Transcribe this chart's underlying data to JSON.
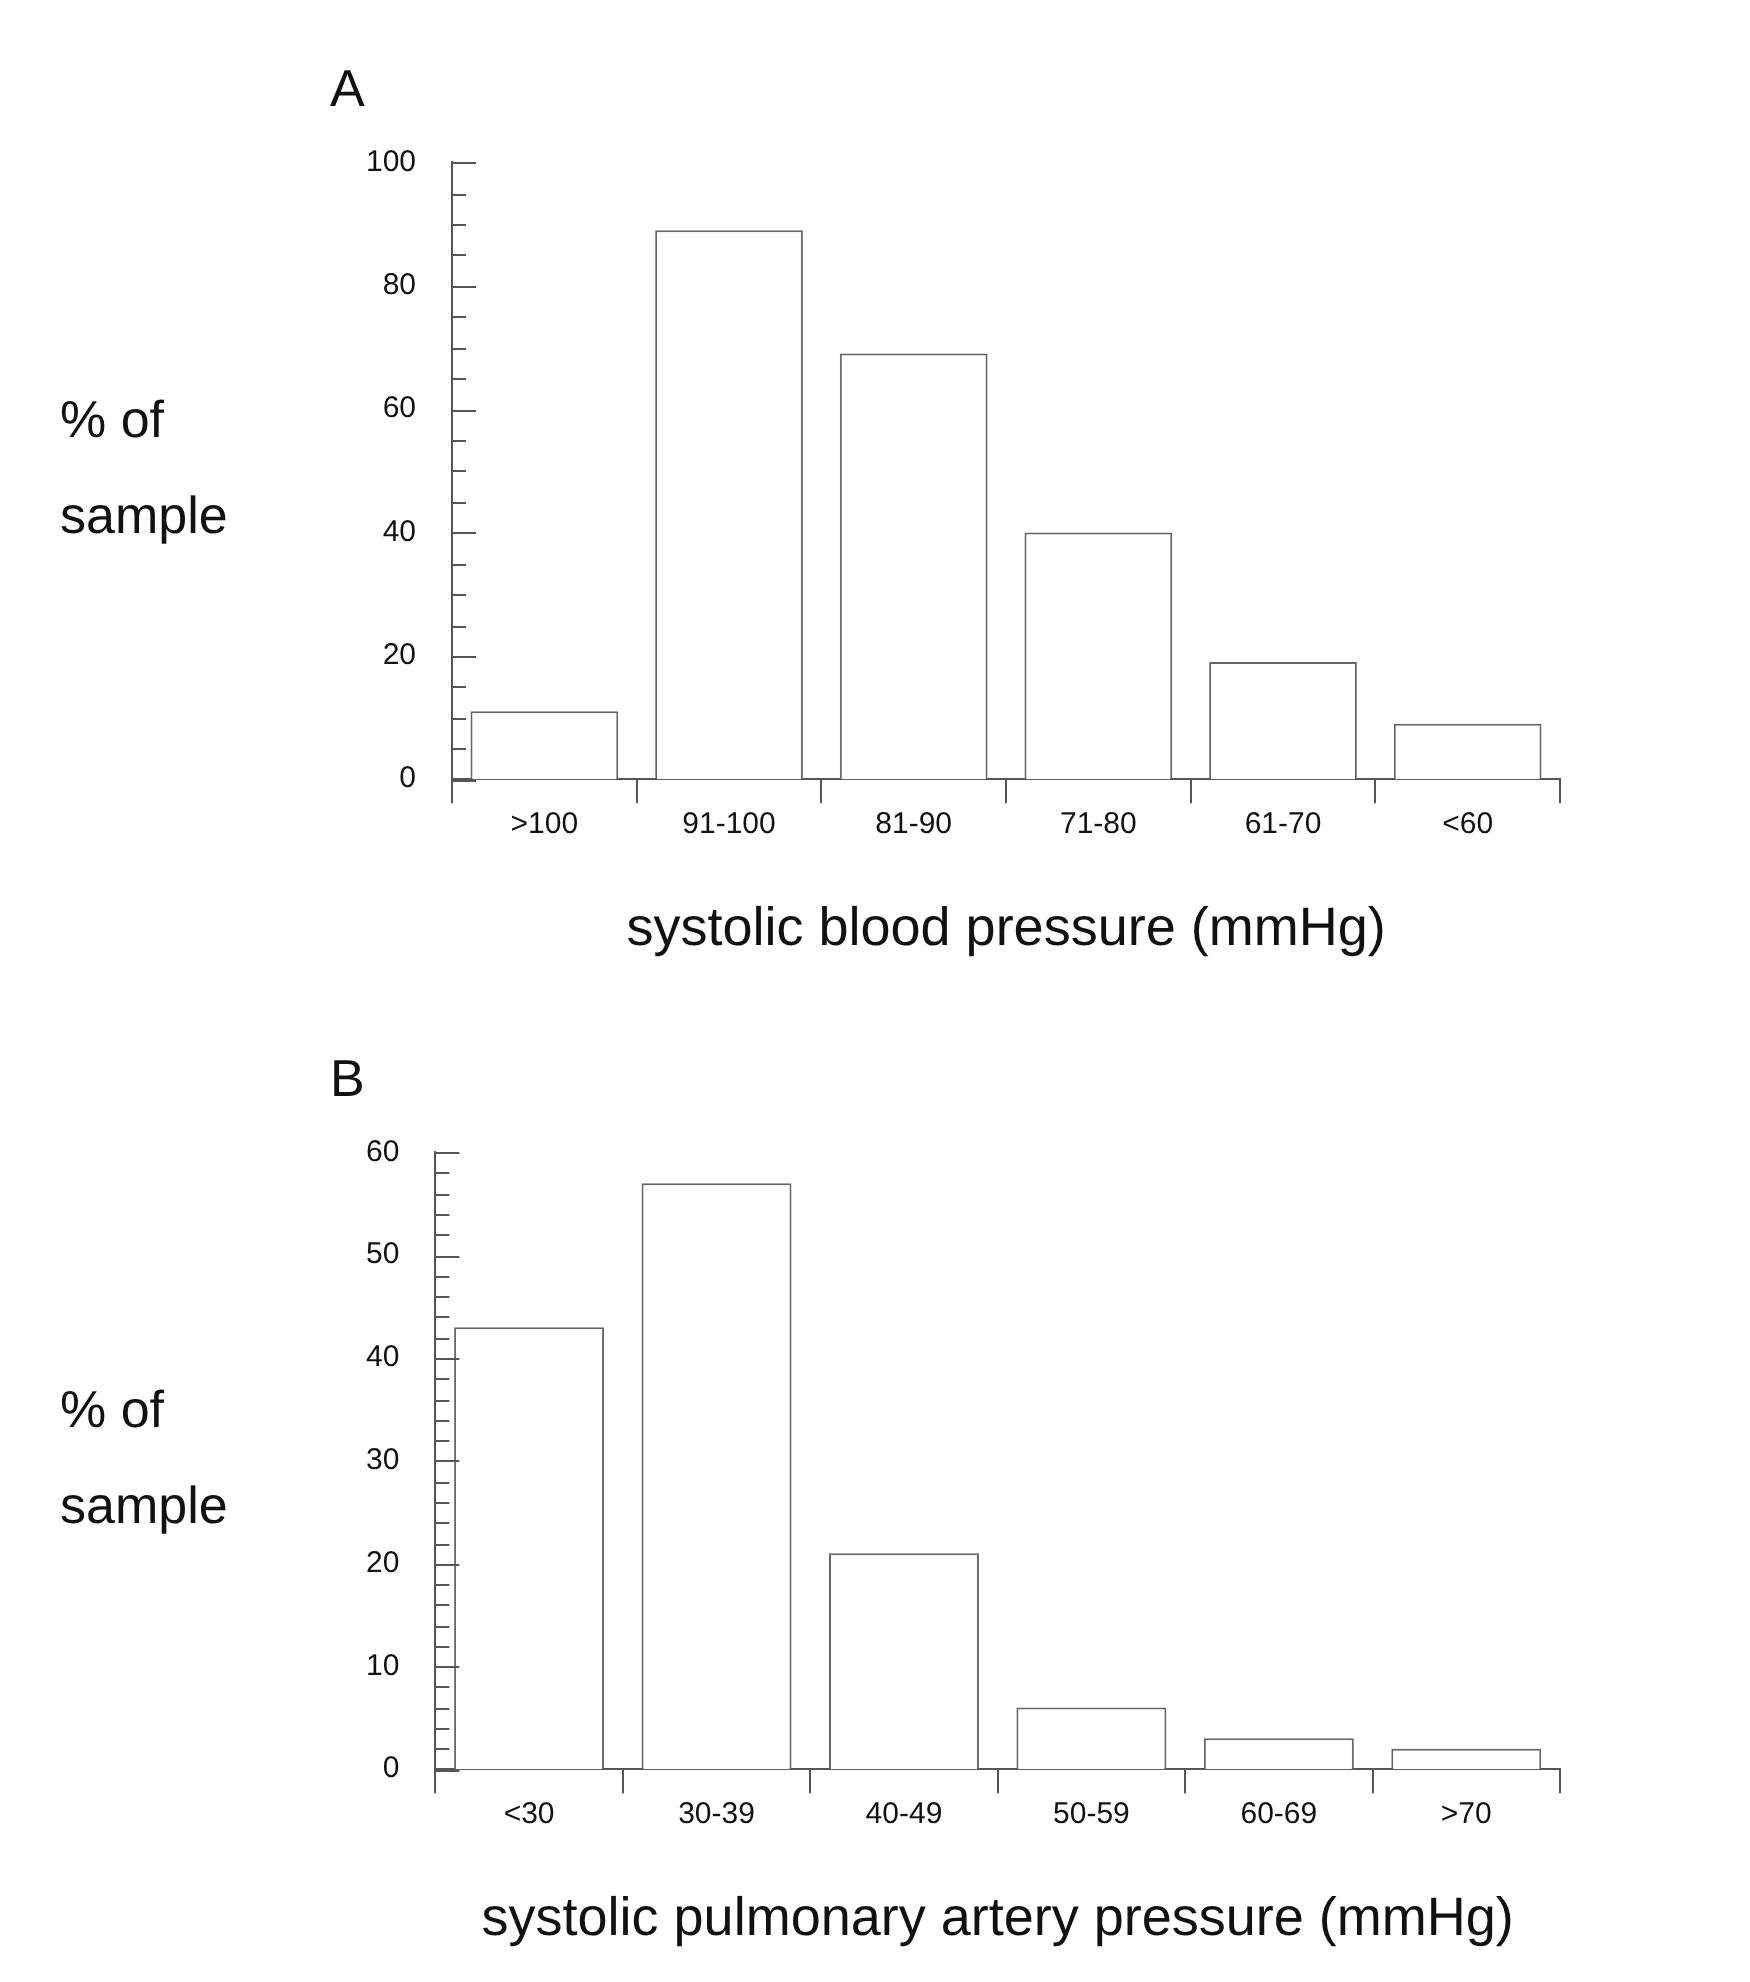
{
  "chart_data": [
    {
      "type": "bar",
      "title": "A",
      "xlabel": "systolic blood pressure (mmHg)",
      "ylabel": "% of sample",
      "categories": [
        ">100",
        "91-100",
        "81-90",
        "71-80",
        "61-70",
        "<60"
      ],
      "values": [
        11,
        89,
        69,
        40,
        19,
        9
      ],
      "color": "#ffffff",
      "ylim": [
        0,
        100
      ],
      "yticks": [
        0,
        {
          "value": 5,
          "label": null
        },
        {
          "value": 10,
          "label": null
        },
        {
          "value": 15,
          "label": null
        },
        20,
        {
          "value": 25,
          "label": null
        },
        {
          "value": 30,
          "label": null
        },
        {
          "value": 35,
          "label": null
        },
        40,
        {
          "value": 45,
          "label": null
        },
        {
          "value": 50,
          "label": null
        },
        {
          "value": 55,
          "label": null
        },
        60,
        {
          "value": 65,
          "label": null
        },
        {
          "value": 70,
          "label": null
        },
        {
          "value": 75,
          "label": null
        },
        80,
        {
          "value": 85,
          "label": null
        },
        {
          "value": 90,
          "label": null
        },
        {
          "value": 95,
          "label": null
        },
        100
      ],
      "grid": false,
      "legend": false
    },
    {
      "type": "bar",
      "title": "B",
      "xlabel": "systolic pulmonary artery pressure (mmHg)",
      "ylabel": "% of sample",
      "categories": [
        "<30",
        "30-39",
        "40-49",
        "50-59",
        "60-69",
        ">70"
      ],
      "values": [
        43,
        57,
        21,
        6,
        3,
        2
      ],
      "color": "#ffffff",
      "ylim": [
        0,
        60
      ],
      "yticks": [
        0,
        {
          "value": 2,
          "label": null
        },
        {
          "value": 4,
          "label": null
        },
        {
          "value": 6,
          "label": null
        },
        {
          "value": 8,
          "label": null
        },
        10,
        {
          "value": 12,
          "label": null
        },
        {
          "value": 14,
          "label": null
        },
        {
          "value": 16,
          "label": null
        },
        {
          "value": 18,
          "label": null
        },
        20,
        {
          "value": 22,
          "label": null
        },
        {
          "value": 24,
          "label": null
        },
        {
          "value": 26,
          "label": null
        },
        {
          "value": 28,
          "label": null
        },
        30,
        {
          "value": 32,
          "label": null
        },
        {
          "value": 34,
          "label": null
        },
        {
          "value": 36,
          "label": null
        },
        {
          "value": 38,
          "label": null
        },
        40,
        {
          "value": 42,
          "label": null
        },
        {
          "value": 44,
          "label": null
        },
        {
          "value": 46,
          "label": null
        },
        {
          "value": 48,
          "label": null
        },
        50,
        {
          "value": 52,
          "label": null
        },
        {
          "value": 54,
          "label": null
        },
        {
          "value": 56,
          "label": null
        },
        {
          "value": 58,
          "label": null
        },
        60
      ],
      "grid": false,
      "legend": false
    }
  ]
}
